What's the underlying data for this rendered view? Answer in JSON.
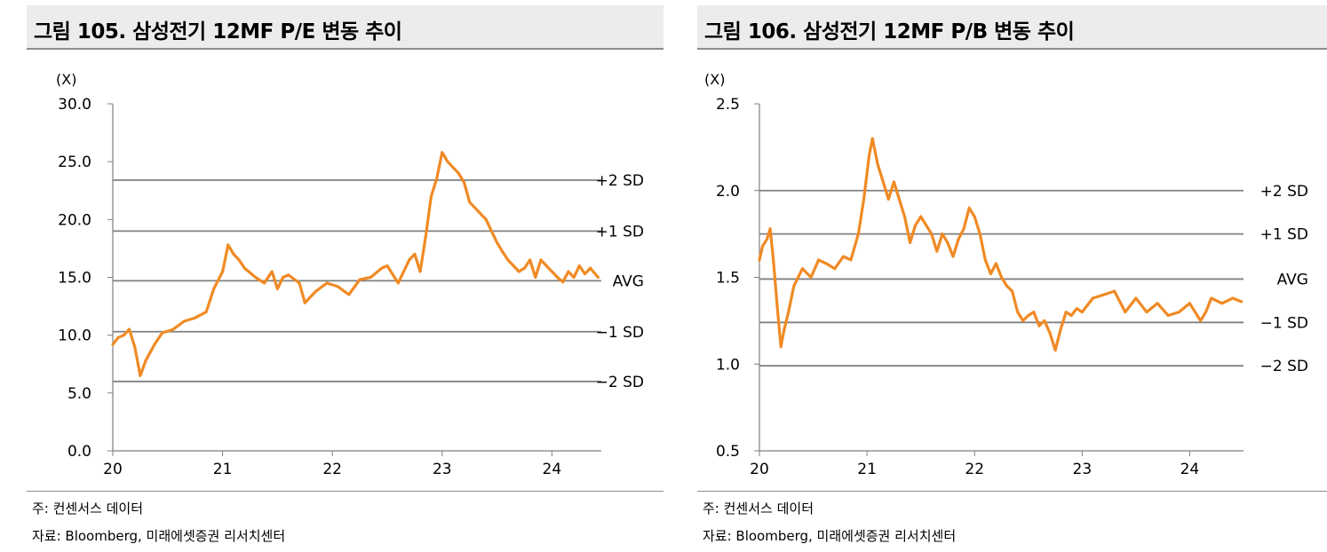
{
  "pe_panel": {
    "title": "그림 105. 삼성전기 12MF P/E 변동 추이",
    "note": "주: 컨센서스 데이터",
    "source": "자료: Bloomberg, 미래에셋증권 리서치센터"
  },
  "pb_panel": {
    "title": "그림 106. 삼성전기 12MF P/B 변동 추이",
    "note": "주: 컨센서스 데이터",
    "source": "자료: Bloomberg, 미래에셋증권 리서치센터"
  },
  "colors": {
    "series": "#f08a24",
    "band": "#808080",
    "axis": "#808080"
  },
  "chart_data": [
    {
      "type": "line",
      "unit_label": "(X)",
      "ylim": [
        0,
        30
      ],
      "yticks": [
        "0.0",
        "5.0",
        "10.0",
        "15.0",
        "20.0",
        "25.0",
        "30.0"
      ],
      "xlim": [
        20,
        24.45
      ],
      "xticks": [
        "20",
        "21",
        "22",
        "23",
        "24"
      ],
      "bands": [
        {
          "label": "+2 SD",
          "value": 23.4
        },
        {
          "label": "+1 SD",
          "value": 19.0
        },
        {
          "label": "AVG",
          "value": 14.7
        },
        {
          "label": "−1 SD",
          "value": 10.3
        },
        {
          "label": "−2 SD",
          "value": 6.0
        }
      ],
      "series": [
        {
          "x": [
            20.0,
            20.05,
            20.1,
            20.15,
            20.2,
            20.25,
            20.3,
            20.38,
            20.45,
            20.55,
            20.65,
            20.75,
            20.85,
            20.92,
            21.0,
            21.05,
            21.1,
            21.15,
            21.2,
            21.3,
            21.38,
            21.45,
            21.5,
            21.55,
            21.6,
            21.7,
            21.75,
            21.85,
            21.95,
            22.05,
            22.15,
            22.25,
            22.35,
            22.45,
            22.5,
            22.6,
            22.7,
            22.75,
            22.8,
            22.85,
            22.9,
            22.95,
            23.0,
            23.05,
            23.1,
            23.15,
            23.2,
            23.25,
            23.3,
            23.35,
            23.4,
            23.45,
            23.5,
            23.55,
            23.6,
            23.65,
            23.7,
            23.75,
            23.8,
            23.85,
            23.9,
            23.95,
            24.0,
            24.05,
            24.1,
            24.15,
            24.2,
            24.25,
            24.3,
            24.35,
            24.42
          ],
          "values": [
            9.2,
            9.8,
            10.0,
            10.5,
            9.0,
            6.5,
            7.8,
            9.2,
            10.2,
            10.5,
            11.2,
            11.5,
            12.0,
            14.0,
            15.5,
            17.8,
            17.0,
            16.5,
            15.8,
            15.0,
            14.5,
            15.5,
            14.0,
            15.0,
            15.2,
            14.5,
            12.8,
            13.8,
            14.5,
            14.2,
            13.5,
            14.8,
            15.0,
            15.8,
            16.0,
            14.5,
            16.5,
            17.0,
            15.5,
            18.5,
            22.0,
            23.5,
            25.8,
            25.0,
            24.5,
            24.0,
            23.2,
            21.5,
            21.0,
            20.5,
            20.0,
            19.0,
            18.0,
            17.2,
            16.5,
            16.0,
            15.5,
            15.8,
            16.5,
            15.0,
            16.5,
            16.0,
            15.5,
            15.0,
            14.6,
            15.5,
            15.0,
            16.0,
            15.3,
            15.8,
            15.0
          ]
        }
      ]
    },
    {
      "type": "line",
      "unit_label": "(X)",
      "ylim": [
        0.5,
        2.5
      ],
      "yticks": [
        "0.5",
        "1.0",
        "1.5",
        "2.0",
        "2.5"
      ],
      "xlim": [
        20,
        24.5
      ],
      "xticks": [
        "20",
        "21",
        "22",
        "23",
        "24"
      ],
      "bands": [
        {
          "label": "+2 SD",
          "value": 2.0
        },
        {
          "label": "+1 SD",
          "value": 1.75
        },
        {
          "label": "AVG",
          "value": 1.49
        },
        {
          "label": "−1 SD",
          "value": 1.24
        },
        {
          "label": "−2 SD",
          "value": 0.99
        }
      ],
      "series": [
        {
          "x": [
            20.0,
            20.03,
            20.07,
            20.1,
            20.13,
            20.17,
            20.2,
            20.23,
            20.27,
            20.32,
            20.4,
            20.48,
            20.55,
            20.62,
            20.7,
            20.78,
            20.85,
            20.92,
            20.97,
            21.02,
            21.05,
            21.1,
            21.15,
            21.2,
            21.25,
            21.3,
            21.35,
            21.4,
            21.45,
            21.5,
            21.55,
            21.6,
            21.65,
            21.7,
            21.75,
            21.8,
            21.85,
            21.9,
            21.95,
            22.0,
            22.05,
            22.1,
            22.15,
            22.2,
            22.25,
            22.3,
            22.35,
            22.4,
            22.45,
            22.5,
            22.55,
            22.6,
            22.65,
            22.7,
            22.75,
            22.8,
            22.85,
            22.9,
            22.95,
            23.0,
            23.1,
            23.2,
            23.3,
            23.4,
            23.5,
            23.6,
            23.7,
            23.8,
            23.9,
            24.0,
            24.1,
            24.15,
            24.2,
            24.3,
            24.4,
            24.48
          ],
          "values": [
            1.6,
            1.68,
            1.72,
            1.78,
            1.6,
            1.3,
            1.1,
            1.2,
            1.3,
            1.45,
            1.55,
            1.5,
            1.6,
            1.58,
            1.55,
            1.62,
            1.6,
            1.75,
            1.95,
            2.2,
            2.3,
            2.15,
            2.05,
            1.95,
            2.05,
            1.95,
            1.85,
            1.7,
            1.8,
            1.85,
            1.8,
            1.75,
            1.65,
            1.75,
            1.7,
            1.62,
            1.72,
            1.78,
            1.9,
            1.85,
            1.75,
            1.6,
            1.52,
            1.58,
            1.5,
            1.45,
            1.42,
            1.3,
            1.25,
            1.28,
            1.3,
            1.22,
            1.25,
            1.18,
            1.08,
            1.2,
            1.3,
            1.28,
            1.32,
            1.3,
            1.38,
            1.4,
            1.42,
            1.3,
            1.38,
            1.3,
            1.35,
            1.28,
            1.3,
            1.35,
            1.25,
            1.3,
            1.38,
            1.35,
            1.38,
            1.36
          ]
        }
      ]
    }
  ]
}
